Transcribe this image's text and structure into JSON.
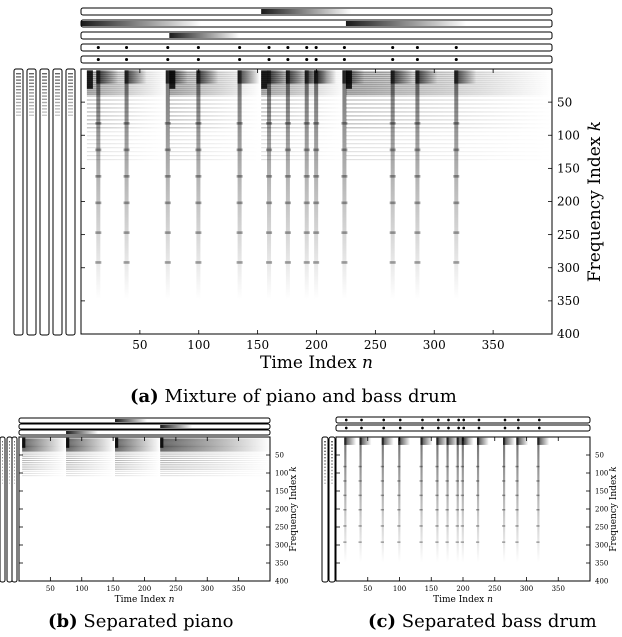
{
  "chart_data": [
    {
      "type": "heatmap",
      "panel_label": "(a)",
      "caption": "Mixture of piano and bass drum",
      "xlabel": "Time Index",
      "xlabel_var": "n",
      "ylabel": "Frequency Index",
      "ylabel_var": "k",
      "xlim": [
        0,
        400
      ],
      "ylim": [
        400,
        0
      ],
      "x_ticks": [
        "50",
        "100",
        "150",
        "200",
        "250",
        "300",
        "350"
      ],
      "y_ticks": [
        "50",
        "100",
        "150",
        "200",
        "250",
        "300",
        "350",
        "400"
      ],
      "colormap": "grayscale (white = 0, black = high)",
      "piano_onsets": [
        5,
        75,
        153,
        225
      ],
      "drum_onsets": [
        13,
        37,
        72,
        98,
        133,
        158,
        174,
        190,
        198,
        222,
        263,
        284,
        317
      ],
      "activation_rows": 5,
      "template_columns": 5
    },
    {
      "type": "heatmap",
      "panel_label": "(b)",
      "caption": "Separated piano",
      "xlabel": "Time Index",
      "xlabel_var": "n",
      "ylabel": "Frequency Index",
      "ylabel_var": "k",
      "xlim": [
        0,
        400
      ],
      "ylim": [
        400,
        0
      ],
      "x_ticks": [
        "50",
        "100",
        "150",
        "200",
        "250",
        "300",
        "350"
      ],
      "y_ticks": [
        "50",
        "100",
        "150",
        "200",
        "250",
        "300",
        "350",
        "400"
      ],
      "colormap": "grayscale",
      "piano_onsets": [
        5,
        75,
        153,
        225
      ]
    },
    {
      "type": "heatmap",
      "panel_label": "(c)",
      "caption": "Separated bass drum",
      "xlabel": "Time Index",
      "xlabel_var": "n",
      "ylabel": "Frequency Index",
      "ylabel_var": "k",
      "xlim": [
        0,
        400
      ],
      "ylim": [
        400,
        0
      ],
      "x_ticks": [
        "50",
        "100",
        "150",
        "200",
        "250",
        "300",
        "350"
      ],
      "y_ticks": [
        "50",
        "100",
        "150",
        "200",
        "250",
        "300",
        "350",
        "400"
      ],
      "colormap": "grayscale",
      "drum_onsets": [
        13,
        37,
        72,
        98,
        133,
        158,
        174,
        190,
        198,
        222,
        263,
        284,
        317
      ]
    }
  ],
  "colors": {
    "ink": "#000000",
    "background": "#ffffff"
  }
}
